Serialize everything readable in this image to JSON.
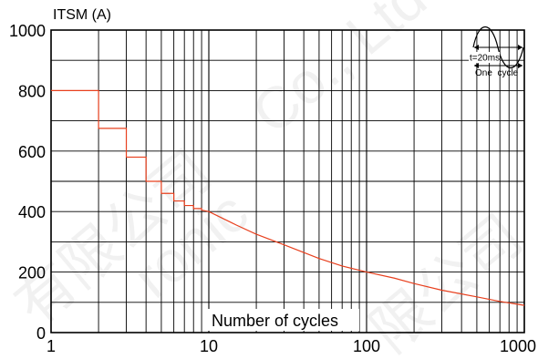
{
  "chart_data": {
    "type": "line",
    "ylabel": "ITSM (A)",
    "xlabel": "Number of cycles",
    "x_scale": "log",
    "xlim": [
      1,
      1000
    ],
    "ylim": [
      0,
      1000
    ],
    "x_ticks": [
      1,
      10,
      100,
      1000
    ],
    "x_tick_labels": [
      "1",
      "10",
      "100",
      "1000"
    ],
    "y_ticks": [
      0,
      200,
      400,
      600,
      800,
      1000
    ],
    "y_tick_labels": [
      "0",
      "200",
      "400",
      "600",
      "800",
      "1000"
    ],
    "grid": true,
    "series_color": "#e8401e",
    "series": [
      {
        "x": [
          1,
          2,
          2,
          3,
          3,
          4,
          4,
          5,
          5,
          6,
          6,
          7,
          7,
          8,
          8,
          9,
          9,
          10,
          15,
          20,
          30,
          50,
          70,
          100,
          150,
          200,
          300,
          500,
          700,
          1000
        ],
        "y": [
          800,
          800,
          675,
          675,
          580,
          580,
          500,
          500,
          460,
          460,
          435,
          435,
          420,
          420,
          410,
          410,
          405,
          400,
          355,
          325,
          290,
          245,
          220,
          200,
          180,
          162,
          140,
          118,
          103,
          90
        ]
      }
    ],
    "inset": {
      "period_label": "t=20ms",
      "cycle_label": "One  cycle"
    }
  }
}
